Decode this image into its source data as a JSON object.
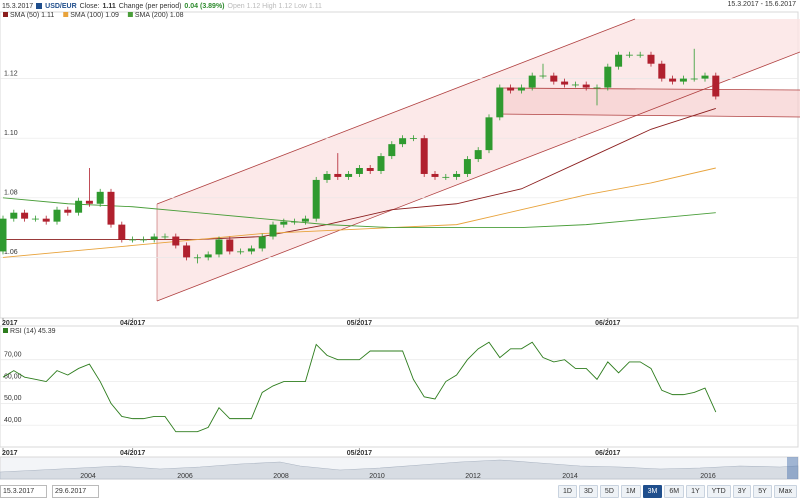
{
  "header": {
    "date": "15.3.2017",
    "symbol": "USD/EUR",
    "close_label": "Close:",
    "close": "1.11",
    "change_label": "Change (per period)",
    "change": "0.04 (3.89%)",
    "ohl": "Open 1.12 High 1.12 Low 1.11",
    "range": "15.3.2017 - 15.6.2017"
  },
  "chart_data": [
    {
      "type": "candlestick",
      "open": [
        1.062,
        1.073,
        1.075,
        1.073,
        1.073,
        1.072,
        1.076,
        1.075,
        1.079,
        1.078,
        1.082,
        1.071,
        1.066,
        1.066,
        1.066,
        1.067,
        1.067,
        1.064,
        1.06,
        1.06,
        1.061,
        1.066,
        1.062,
        1.062,
        1.063,
        1.067,
        1.071,
        1.072,
        1.072,
        1.073,
        1.086,
        1.088,
        1.087,
        1.088,
        1.09,
        1.089,
        1.094,
        1.098,
        1.1,
        1.1,
        1.088,
        1.087,
        1.087,
        1.088,
        1.093,
        1.096,
        1.107,
        1.117,
        1.116,
        1.117,
        1.121,
        1.121,
        1.119,
        1.118,
        1.118,
        1.117,
        1.117,
        1.124,
        1.128,
        1.128,
        1.128,
        1.125,
        1.12,
        1.119,
        1.12,
        1.12,
        1.121
      ],
      "high": [
        1.074,
        1.076,
        1.076,
        1.074,
        1.074,
        1.077,
        1.077,
        1.08,
        1.09,
        1.083,
        1.083,
        1.072,
        1.067,
        1.067,
        1.068,
        1.068,
        1.068,
        1.065,
        1.061,
        1.062,
        1.067,
        1.067,
        1.063,
        1.064,
        1.068,
        1.072,
        1.073,
        1.073,
        1.074,
        1.087,
        1.089,
        1.095,
        1.089,
        1.091,
        1.091,
        1.095,
        1.099,
        1.101,
        1.101,
        1.101,
        1.089,
        1.088,
        1.089,
        1.094,
        1.097,
        1.108,
        1.118,
        1.118,
        1.118,
        1.122,
        1.125,
        1.122,
        1.12,
        1.119,
        1.119,
        1.118,
        1.125,
        1.129,
        1.129,
        1.129,
        1.129,
        1.126,
        1.121,
        1.121,
        1.13,
        1.122,
        1.122
      ],
      "low": [
        1.061,
        1.072,
        1.072,
        1.072,
        1.071,
        1.071,
        1.074,
        1.074,
        1.077,
        1.077,
        1.07,
        1.065,
        1.065,
        1.065,
        1.065,
        1.066,
        1.063,
        1.059,
        1.058,
        1.059,
        1.06,
        1.061,
        1.061,
        1.061,
        1.062,
        1.066,
        1.07,
        1.071,
        1.071,
        1.072,
        1.085,
        1.086,
        1.086,
        1.087,
        1.088,
        1.088,
        1.093,
        1.097,
        1.099,
        1.087,
        1.086,
        1.086,
        1.086,
        1.087,
        1.092,
        1.095,
        1.106,
        1.115,
        1.115,
        1.116,
        1.12,
        1.118,
        1.117,
        1.117,
        1.116,
        1.111,
        1.116,
        1.123,
        1.127,
        1.127,
        1.124,
        1.119,
        1.118,
        1.118,
        1.119,
        1.119,
        1.113
      ],
      "close": [
        1.073,
        1.075,
        1.073,
        1.073,
        1.072,
        1.076,
        1.075,
        1.079,
        1.078,
        1.082,
        1.071,
        1.066,
        1.066,
        1.066,
        1.067,
        1.067,
        1.064,
        1.06,
        1.06,
        1.061,
        1.066,
        1.062,
        1.062,
        1.063,
        1.067,
        1.071,
        1.072,
        1.072,
        1.073,
        1.086,
        1.088,
        1.087,
        1.088,
        1.09,
        1.089,
        1.094,
        1.098,
        1.1,
        1.1,
        1.088,
        1.087,
        1.087,
        1.088,
        1.093,
        1.096,
        1.107,
        1.117,
        1.116,
        1.117,
        1.121,
        1.121,
        1.119,
        1.118,
        1.118,
        1.117,
        1.117,
        1.124,
        1.128,
        1.128,
        1.128,
        1.125,
        1.12,
        1.119,
        1.12,
        1.12,
        1.121,
        1.114
      ],
      "up_color": "#2f9a2f",
      "down_color": "#b0202e",
      "ylim": [
        1.04,
        1.14
      ],
      "yticks": [
        1.06,
        1.08,
        {
          "value": 1.1,
          "label": "1.10"
        },
        1.12
      ],
      "grid": true,
      "xticks": [
        {
          "value": 0,
          "label": "2017"
        },
        {
          "value": 12,
          "label": "04/2017"
        },
        {
          "value": 33,
          "label": "05/2017"
        },
        {
          "value": 56,
          "label": "06/2017"
        }
      ],
      "series": [
        {
          "name": "SMA (50) 1.11",
          "color": "#8b1e1e",
          "x": [
            0,
            6,
            12,
            18,
            24,
            30,
            36,
            42,
            48,
            54,
            60,
            66
          ],
          "values": [
            1.066,
            1.066,
            1.066,
            1.066,
            1.067,
            1.071,
            1.076,
            1.078,
            1.083,
            1.093,
            1.103,
            1.11
          ]
        },
        {
          "name": "SMA (100) 1.09",
          "color": "#e8a33c",
          "x": [
            0,
            6,
            12,
            18,
            24,
            30,
            36,
            42,
            48,
            54,
            60,
            66
          ],
          "values": [
            1.06,
            1.062,
            1.064,
            1.066,
            1.068,
            1.069,
            1.07,
            1.071,
            1.076,
            1.081,
            1.085,
            1.09
          ]
        },
        {
          "name": "SMA (200) 1.08",
          "color": "#4a9e3a",
          "x": [
            0,
            6,
            12,
            18,
            24,
            30,
            36,
            42,
            48,
            54,
            60,
            66
          ],
          "values": [
            1.08,
            1.078,
            1.077,
            1.075,
            1.073,
            1.071,
            1.07,
            1.07,
            1.07,
            1.071,
            1.073,
            1.075
          ]
        }
      ]
    },
    {
      "type": "line",
      "title": "RSI (14) 45.39",
      "color": "#2e7d1e",
      "values": [
        62,
        65,
        62,
        61,
        60,
        65,
        63,
        66,
        68,
        60,
        50,
        44,
        43,
        43,
        44,
        44,
        37,
        37,
        37,
        39,
        48,
        43,
        43,
        43,
        55,
        58,
        60,
        60,
        60,
        77,
        72,
        70,
        70,
        70,
        74,
        74,
        74,
        74,
        61,
        53,
        52,
        60,
        63,
        70,
        75,
        78,
        71,
        75,
        75,
        78,
        71,
        69,
        70,
        66,
        66,
        61,
        69,
        64,
        69,
        69,
        66,
        56,
        54,
        54,
        55,
        57,
        46
      ],
      "ylim": [
        30,
        85
      ],
      "yticks": [
        {
          "value": 40,
          "label": "40,00"
        },
        {
          "value": 50,
          "label": "50,00"
        },
        {
          "value": 60,
          "label": "60,00"
        },
        {
          "value": 70,
          "label": "70,00"
        }
      ],
      "grid": true,
      "xticks": [
        {
          "value": 0,
          "label": "2017"
        },
        {
          "value": 12,
          "label": "04/2017"
        },
        {
          "value": 33,
          "label": "05/2017"
        },
        {
          "value": 56,
          "label": "06/2017"
        }
      ]
    }
  ],
  "navigator": {
    "labels": [
      "2004",
      "2006",
      "2008",
      "2010",
      "2012",
      "2014",
      "2016"
    ]
  },
  "controls": {
    "from": "15.3.2017",
    "to": "29.6.2017",
    "ranges": [
      "1D",
      "3D",
      "5D",
      "1M",
      "3M",
      "6M",
      "1Y",
      "YTD",
      "3Y",
      "5Y",
      "Max"
    ],
    "active": 4
  }
}
